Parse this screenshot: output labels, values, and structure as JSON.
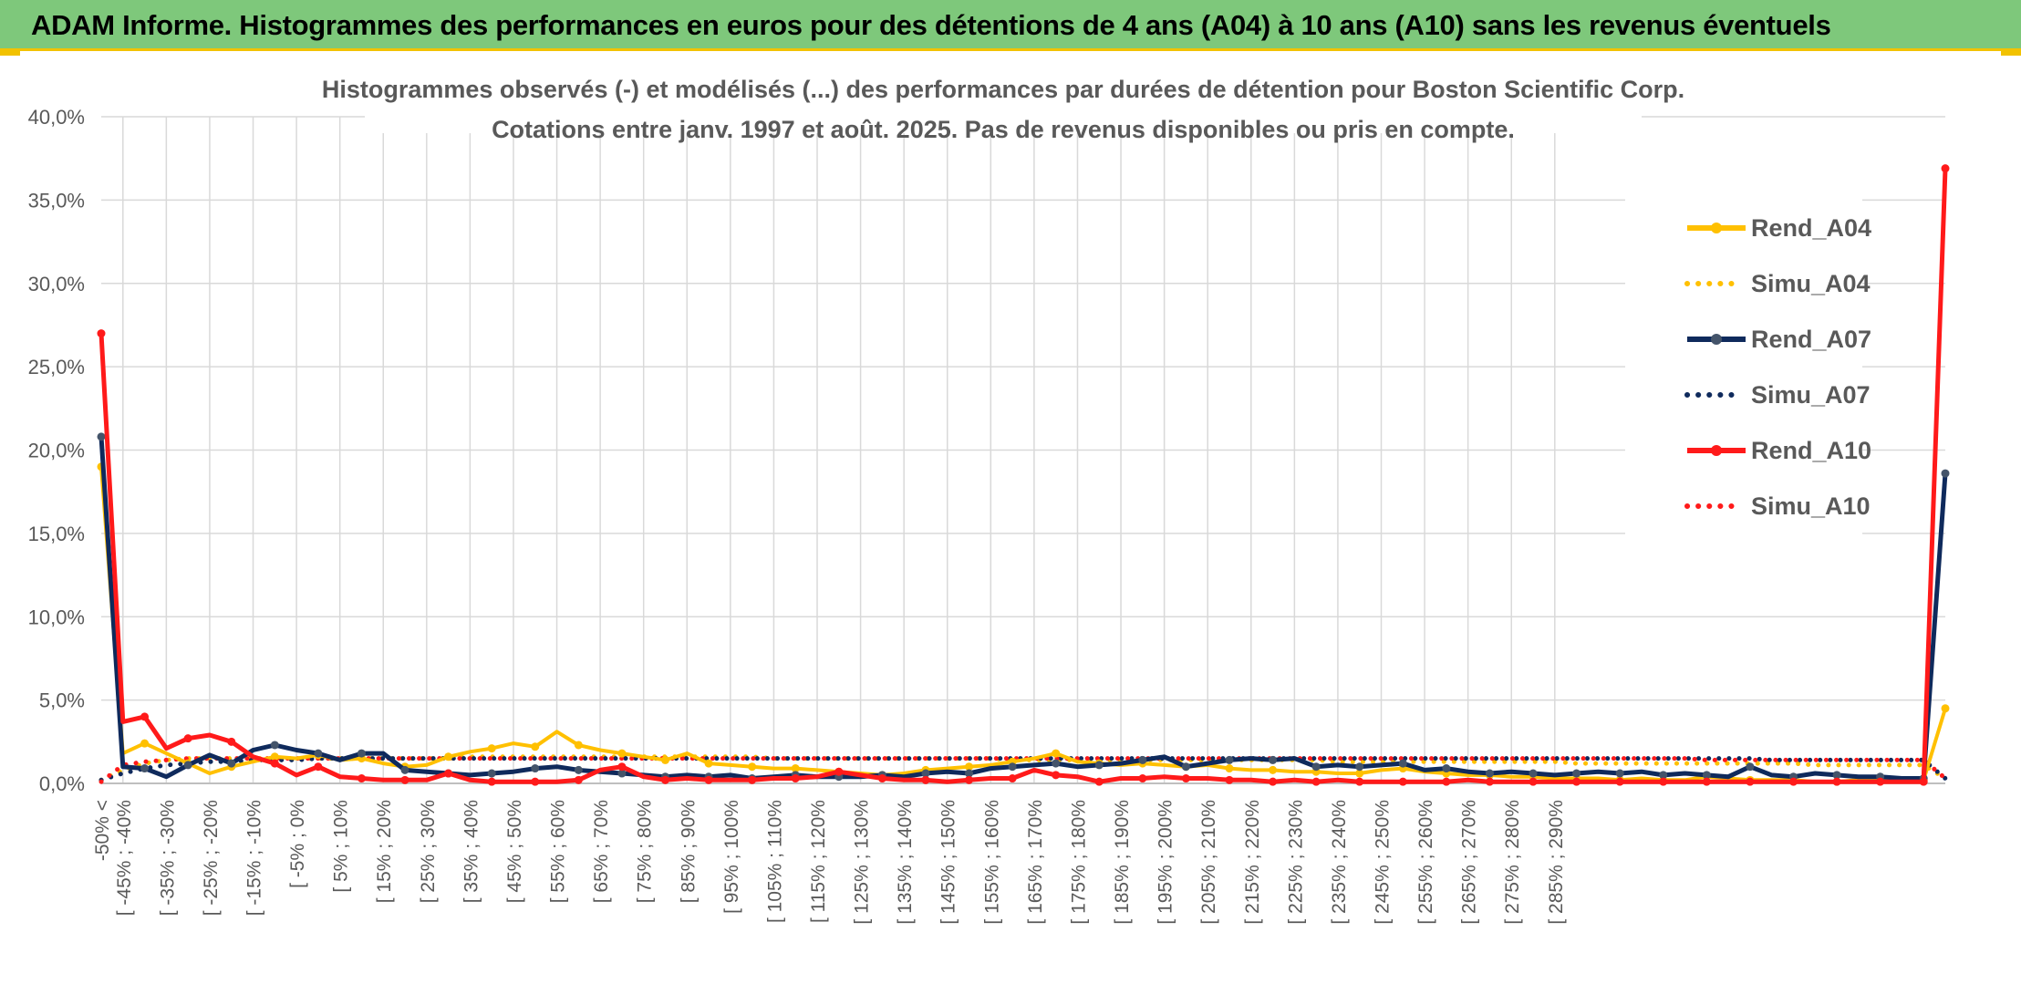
{
  "banner_title": "ADAM Informe. Histogrammes des performances en euros pour des détentions de 4 ans (A04) à 10 ans (A10) sans les revenus éventuels",
  "colors": {
    "banner_bg": "#7ec87b",
    "accent_yellow": "#f2c200",
    "a04": "#ffc000",
    "a07": "#0f2a5c",
    "a10": "#ff1a1a",
    "grid": "#d9d9d9",
    "axis_text": "#595959"
  },
  "chart_data": {
    "type": "line",
    "title": "Histogrammes observés (-) et modélisés (...) des performances par durées de détention pour Boston Scientific Corp.",
    "subtitle": "Cotations entre janv. 1997 et août. 2025. Pas de revenus disponibles ou pris en compte.",
    "y_ticks": [
      "0,0%",
      "5,0%",
      "10,0%",
      "15,0%",
      "20,0%",
      "25,0%",
      "30,0%",
      "35,0%",
      "40,0%"
    ],
    "ylim": [
      0,
      40
    ],
    "grid": true,
    "legend_position": "right",
    "x_tick_labels": [
      "-50% <",
      "[ -45% ; -40%",
      "[ -35% ; -30%",
      "[ -25% ; -20%",
      "[ -15% ; -10%",
      "[ -5% ; 0%",
      "[ 5% ; 10%",
      "[ 15% ; 20%",
      "[ 25% ; 30%",
      "[ 35% ; 40%",
      "[ 45% ; 50%",
      "[ 55% ; 60%",
      "[ 65% ; 70%",
      "[ 75% ; 80%",
      "[ 85% ; 90%",
      "[ 95% ; 100%",
      "[ 105% ; 110%",
      "[ 115% ; 120%",
      "[ 125% ; 130%",
      "[ 135% ; 140%",
      "[ 145% ; 150%",
      "[ 155% ; 160%",
      "[ 165% ; 170%",
      "[ 175% ; 180%",
      "[ 185% ; 190%",
      "[ 195% ; 200%",
      "[ 205% ; 210%",
      "[ 215% ; 220%",
      "[ 225% ; 230%",
      "[ 235% ; 240%",
      "[ 245% ; 250%",
      "[ 255% ; 260%",
      "[ 265% ; 270%",
      "[ 275% ; 280%",
      "[ 285% ; 290%"
    ],
    "series": [
      {
        "name": "Rend_A04",
        "style": "solid",
        "color": "#ffc000",
        "values": [
          19.0,
          1.8,
          2.4,
          1.8,
          1.2,
          0.6,
          1.0,
          1.3,
          1.6,
          1.5,
          1.7,
          1.4,
          1.5,
          1.2,
          1.0,
          1.1,
          1.6,
          1.9,
          2.1,
          2.4,
          2.2,
          3.1,
          2.3,
          2.0,
          1.8,
          1.6,
          1.4,
          1.8,
          1.2,
          1.1,
          1.0,
          0.9,
          0.9,
          0.8,
          0.7,
          0.6,
          0.5,
          0.6,
          0.8,
          0.9,
          1.0,
          1.1,
          1.3,
          1.5,
          1.8,
          1.3,
          1.2,
          1.1,
          1.2,
          1.1,
          1.0,
          1.1,
          0.9,
          0.8,
          0.8,
          0.7,
          0.7,
          0.6,
          0.6,
          0.8,
          0.9,
          0.7,
          0.6,
          0.5,
          0.5,
          0.4,
          0.4,
          0.3,
          0.3,
          0.3,
          0.2,
          0.3,
          0.2,
          0.2,
          0.4,
          0.3,
          0.2,
          0.2,
          0.2,
          0.1,
          0.1,
          0.2,
          0.2,
          0.1,
          0.2,
          4.5
        ]
      },
      {
        "name": "Simu_A04",
        "style": "dotted",
        "color": "#ffc000",
        "values": [
          0.2,
          0.8,
          1.2,
          1.4,
          1.5,
          1.5,
          1.5,
          1.5,
          1.5,
          1.5,
          1.5,
          1.5,
          1.5,
          1.5,
          1.5,
          1.5,
          1.5,
          1.6,
          1.6,
          1.6,
          1.6,
          1.6,
          1.6,
          1.6,
          1.6,
          1.6,
          1.6,
          1.6,
          1.6,
          1.6,
          1.6,
          1.5,
          1.5,
          1.5,
          1.5,
          1.5,
          1.5,
          1.5,
          1.5,
          1.5,
          1.5,
          1.5,
          1.4,
          1.4,
          1.4,
          1.4,
          1.4,
          1.4,
          1.4,
          1.4,
          1.4,
          1.4,
          1.4,
          1.4,
          1.4,
          1.4,
          1.4,
          1.3,
          1.3,
          1.3,
          1.3,
          1.3,
          1.3,
          1.3,
          1.3,
          1.3,
          1.3,
          1.3,
          1.2,
          1.2,
          1.2,
          1.2,
          1.2,
          1.2,
          1.2,
          1.2,
          1.2,
          1.2,
          1.2,
          1.1,
          1.1,
          1.1,
          1.1,
          1.1,
          1.1,
          0.3
        ]
      },
      {
        "name": "Rend_A07",
        "style": "solid",
        "color": "#0f2a5c",
        "values": [
          20.8,
          1.0,
          0.9,
          0.4,
          1.1,
          1.7,
          1.2,
          2.0,
          2.3,
          2.0,
          1.8,
          1.4,
          1.8,
          1.8,
          0.8,
          0.7,
          0.6,
          0.5,
          0.6,
          0.7,
          0.9,
          1.0,
          0.8,
          0.7,
          0.6,
          0.5,
          0.4,
          0.5,
          0.4,
          0.5,
          0.3,
          0.4,
          0.5,
          0.4,
          0.4,
          0.4,
          0.5,
          0.4,
          0.6,
          0.7,
          0.6,
          0.9,
          1.0,
          1.1,
          1.2,
          1.0,
          1.1,
          1.2,
          1.4,
          1.6,
          1.0,
          1.2,
          1.4,
          1.5,
          1.4,
          1.5,
          1.0,
          1.1,
          1.0,
          1.1,
          1.2,
          0.8,
          0.9,
          0.7,
          0.6,
          0.7,
          0.6,
          0.5,
          0.6,
          0.7,
          0.6,
          0.7,
          0.5,
          0.6,
          0.5,
          0.4,
          1.0,
          0.5,
          0.4,
          0.6,
          0.5,
          0.4,
          0.4,
          0.3,
          0.3,
          18.6
        ]
      },
      {
        "name": "Simu_A07",
        "style": "dotted",
        "color": "#0f2a5c",
        "values": [
          0.2,
          0.6,
          0.9,
          1.1,
          1.2,
          1.3,
          1.3,
          1.4,
          1.4,
          1.4,
          1.5,
          1.5,
          1.5,
          1.5,
          1.5,
          1.5,
          1.5,
          1.5,
          1.5,
          1.5,
          1.5,
          1.5,
          1.5,
          1.5,
          1.5,
          1.5,
          1.5,
          1.5,
          1.5,
          1.5,
          1.5,
          1.5,
          1.5,
          1.5,
          1.5,
          1.5,
          1.5,
          1.5,
          1.5,
          1.5,
          1.5,
          1.5,
          1.5,
          1.5,
          1.5,
          1.5,
          1.5,
          1.5,
          1.5,
          1.5,
          1.5,
          1.5,
          1.5,
          1.5,
          1.5,
          1.5,
          1.5,
          1.5,
          1.5,
          1.5,
          1.5,
          1.5,
          1.5,
          1.5,
          1.5,
          1.5,
          1.5,
          1.5,
          1.5,
          1.5,
          1.5,
          1.5,
          1.5,
          1.5,
          1.5,
          1.5,
          1.5,
          1.4,
          1.4,
          1.4,
          1.4,
          1.4,
          1.4,
          1.4,
          1.4,
          0.3
        ]
      },
      {
        "name": "Rend_A10",
        "style": "solid",
        "color": "#ff1a1a",
        "values": [
          27.0,
          3.7,
          4.0,
          2.1,
          2.7,
          2.9,
          2.5,
          1.6,
          1.2,
          0.5,
          1.0,
          0.4,
          0.3,
          0.2,
          0.2,
          0.2,
          0.6,
          0.2,
          0.1,
          0.1,
          0.1,
          0.1,
          0.2,
          0.8,
          1.0,
          0.4,
          0.2,
          0.3,
          0.2,
          0.2,
          0.2,
          0.3,
          0.3,
          0.4,
          0.7,
          0.5,
          0.3,
          0.2,
          0.2,
          0.1,
          0.2,
          0.3,
          0.3,
          0.8,
          0.5,
          0.4,
          0.1,
          0.3,
          0.3,
          0.4,
          0.3,
          0.3,
          0.2,
          0.2,
          0.1,
          0.2,
          0.1,
          0.2,
          0.1,
          0.1,
          0.1,
          0.1,
          0.1,
          0.2,
          0.1,
          0.1,
          0.1,
          0.1,
          0.1,
          0.1,
          0.1,
          0.1,
          0.1,
          0.1,
          0.1,
          0.1,
          0.1,
          0.1,
          0.1,
          0.1,
          0.1,
          0.1,
          0.1,
          0.1,
          0.1,
          36.9
        ]
      },
      {
        "name": "Simu_A10",
        "style": "dotted",
        "color": "#ff1a1a",
        "values": [
          0.1,
          1.1,
          1.3,
          1.4,
          1.5,
          1.5,
          1.5,
          1.5,
          1.5,
          1.5,
          1.5,
          1.5,
          1.5,
          1.5,
          1.5,
          1.5,
          1.5,
          1.5,
          1.5,
          1.5,
          1.5,
          1.5,
          1.5,
          1.5,
          1.5,
          1.5,
          1.5,
          1.5,
          1.5,
          1.5,
          1.5,
          1.5,
          1.5,
          1.5,
          1.5,
          1.5,
          1.5,
          1.5,
          1.5,
          1.5,
          1.5,
          1.5,
          1.5,
          1.5,
          1.5,
          1.5,
          1.5,
          1.5,
          1.5,
          1.5,
          1.5,
          1.5,
          1.5,
          1.5,
          1.5,
          1.5,
          1.5,
          1.5,
          1.5,
          1.5,
          1.5,
          1.5,
          1.5,
          1.5,
          1.5,
          1.5,
          1.5,
          1.5,
          1.5,
          1.5,
          1.5,
          1.5,
          1.5,
          1.5,
          1.4,
          1.4,
          1.4,
          1.4,
          1.4,
          1.4,
          1.4,
          1.4,
          1.4,
          1.4,
          1.4,
          0.3
        ]
      }
    ]
  }
}
